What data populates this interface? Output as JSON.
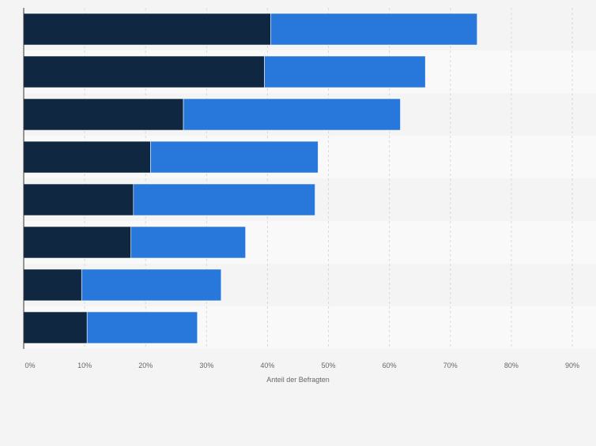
{
  "colors": {
    "background": "#f4f4f4",
    "band_light": "#f9f9f9",
    "grid": "#d9d9d9",
    "axis": "#333333",
    "tick_text": "#666666",
    "series_1": "#0f2740",
    "series_2": "#2878dc"
  },
  "chart_data": {
    "type": "bar",
    "orientation": "horizontal",
    "stacked": true,
    "categories": [
      "",
      "",
      "",
      "",
      "",
      "",
      "",
      ""
    ],
    "series": [
      {
        "values": [
          40.5,
          39.5,
          26.2,
          20.8,
          18.0,
          17.6,
          9.5,
          10.4
        ]
      },
      {
        "values": [
          33.9,
          26.4,
          35.6,
          27.5,
          29.8,
          18.8,
          22.9,
          18.1
        ]
      }
    ],
    "xlabel": "Anteil der Befragten",
    "xlim": [
      0,
      90
    ],
    "xticks": [
      "0%",
      "10%",
      "20%",
      "30%",
      "40%",
      "50%",
      "60%",
      "70%",
      "80%",
      "90%"
    ],
    "grid": true,
    "legend": "none"
  }
}
